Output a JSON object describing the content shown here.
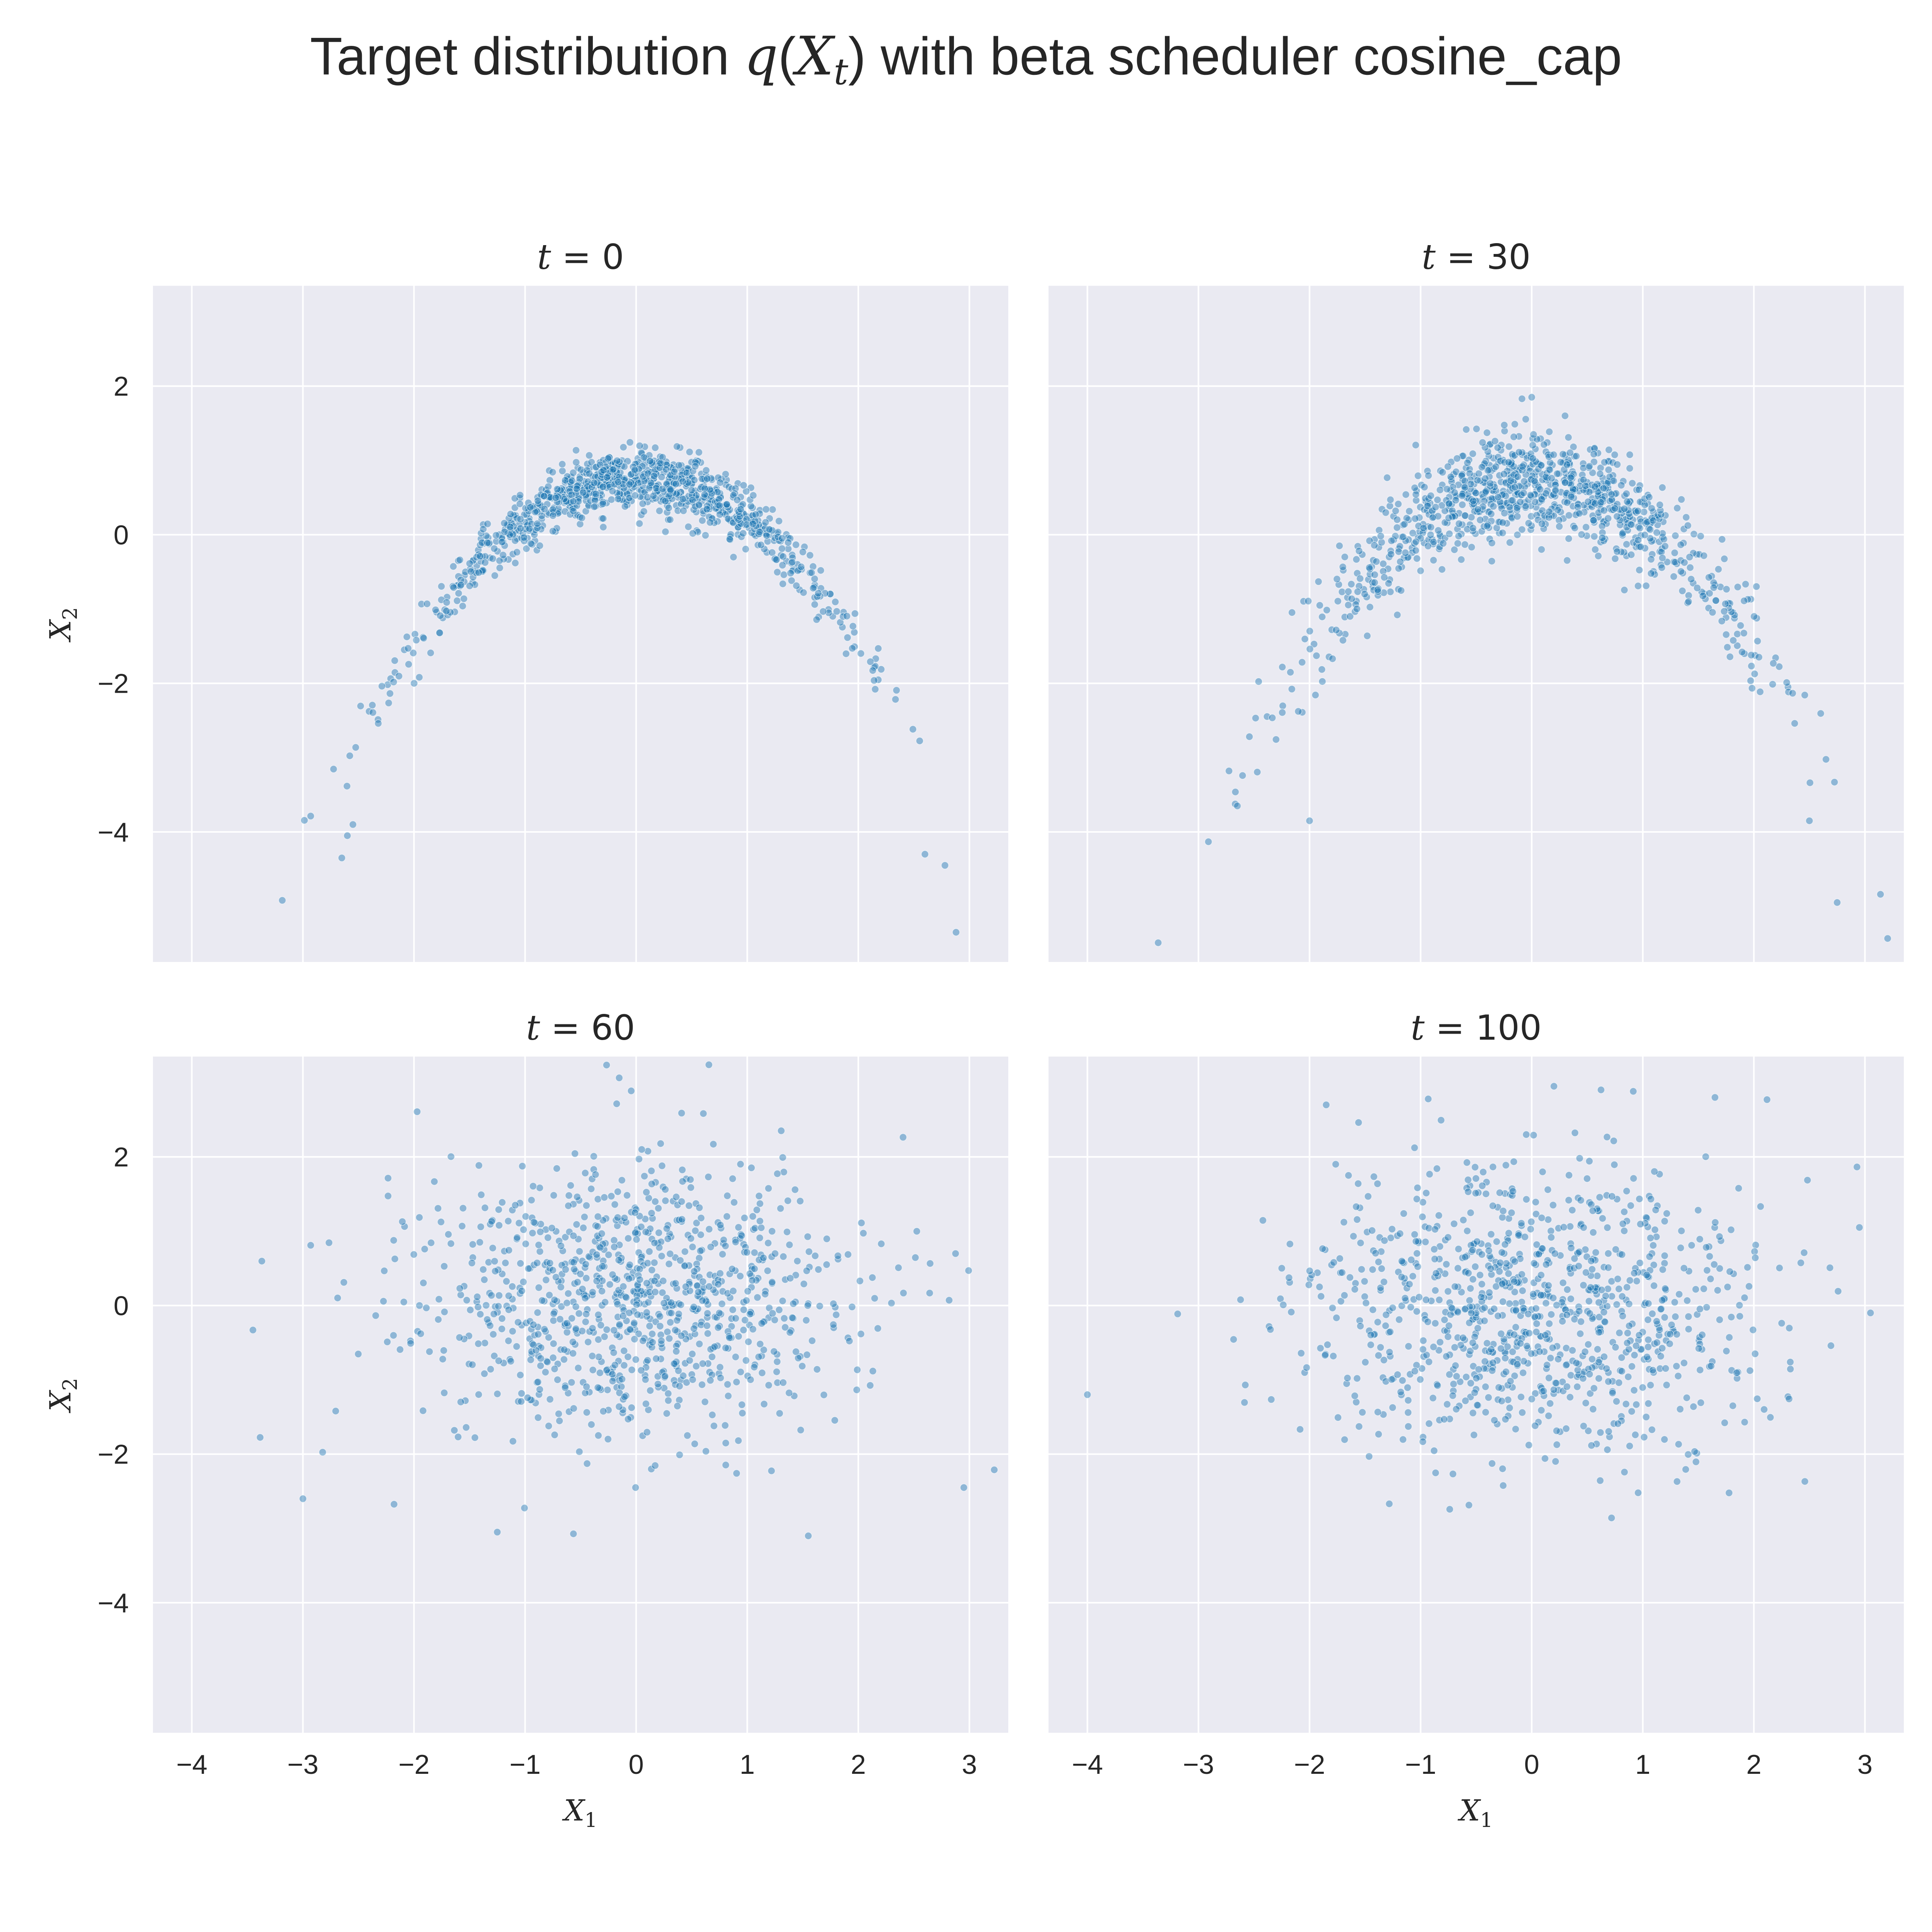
{
  "figure": {
    "title_prefix": "Target distribution ",
    "title_math_q": "q",
    "title_math_X": "X",
    "title_math_sub": "t",
    "title_suffix": " with beta scheduler cosine_cap"
  },
  "style": {
    "background": "#ffffff",
    "panel_background": "#eaeaf2",
    "grid_color": "#ffffff",
    "point_color": "#1f77b4",
    "point_edge": "#ffffff",
    "text_color": "#262626"
  },
  "chart_data": [
    {
      "type": "scatter",
      "title": "t = 0",
      "title_var": "t",
      "title_value": "0",
      "xlabel": "",
      "ylabel": "X_2",
      "xlim": [
        -4.35,
        3.35
      ],
      "ylim": [
        -5.75,
        3.35
      ],
      "xticks": [
        -4,
        -3,
        -2,
        -1,
        0,
        1,
        2,
        3
      ],
      "yticks": [
        -4,
        -2,
        0,
        2
      ],
      "grid": true,
      "distribution": "parabola",
      "n_points": 1000,
      "x_std": 1.0,
      "curve": "X2 = 0.75 - 0.55 * X1^2",
      "noise_std": 0.2,
      "extremes": {
        "x": [
          [
            -2.65,
            -4.35
          ],
          [
            2.88,
            -5.35
          ],
          [
            2.78,
            -4.45
          ],
          [
            2.6,
            -4.3
          ],
          [
            -2.6,
            -4.05
          ],
          [
            -2.55,
            -3.9
          ]
        ]
      }
    },
    {
      "type": "scatter",
      "title": "t = 30",
      "title_var": "t",
      "title_value": "30",
      "xlabel": "",
      "ylabel": "",
      "xlim": [
        -4.35,
        3.35
      ],
      "ylim": [
        -5.75,
        3.35
      ],
      "xticks": [
        -4,
        -3,
        -2,
        -1,
        0,
        1,
        2,
        3
      ],
      "yticks": [
        -4,
        -2,
        0,
        2
      ],
      "grid": true,
      "distribution": "parabola",
      "n_points": 1000,
      "x_std": 1.0,
      "curve": "X2 = 0.7 - 0.55 * X1^2",
      "noise_std": 0.35,
      "extremes": {
        "x": [
          [
            2.75,
            -4.95
          ],
          [
            2.5,
            -3.85
          ],
          [
            -2.0,
            -3.85
          ],
          [
            -2.65,
            -3.65
          ],
          [
            0.0,
            1.85
          ],
          [
            0.3,
            1.6
          ]
        ]
      }
    },
    {
      "type": "scatter",
      "title": "t = 60",
      "title_var": "t",
      "title_value": "60",
      "xlabel": "X_1",
      "ylabel": "X_2",
      "xlim": [
        -4.35,
        3.35
      ],
      "ylim": [
        -5.75,
        3.35
      ],
      "xticks": [
        -4,
        -3,
        -2,
        -1,
        0,
        1,
        2,
        3
      ],
      "yticks": [
        -4,
        -2,
        0,
        2
      ],
      "grid": true,
      "distribution": "gaussian",
      "n_points": 1000,
      "x_std": 1.0,
      "y_mean": 0.05,
      "y_std": 0.95,
      "extremes": {
        "x": [
          [
            -3.45,
            -0.33
          ],
          [
            -3.0,
            -2.6
          ],
          [
            2.95,
            -2.45
          ],
          [
            0.05,
            2.1
          ],
          [
            -1.25,
            -3.05
          ],
          [
            1.55,
            -3.1
          ]
        ]
      }
    },
    {
      "type": "scatter",
      "title": "t = 100",
      "title_var": "t",
      "title_value": "100",
      "xlabel": "X_1",
      "ylabel": "",
      "xlim": [
        -4.35,
        3.35
      ],
      "ylim": [
        -5.75,
        3.35
      ],
      "xticks": [
        -4,
        -3,
        -2,
        -1,
        0,
        1,
        2,
        3
      ],
      "yticks": [
        -4,
        -2,
        0,
        2
      ],
      "grid": true,
      "distribution": "gaussian",
      "n_points": 1000,
      "x_std": 1.0,
      "y_mean": 0.0,
      "y_std": 1.0,
      "extremes": {
        "x": [
          [
            -4.0,
            -1.2
          ],
          [
            3.05,
            -0.1
          ],
          [
            2.95,
            1.05
          ],
          [
            0.2,
            2.95
          ],
          [
            -1.85,
            2.7
          ],
          [
            1.65,
            2.8
          ]
        ]
      }
    }
  ]
}
